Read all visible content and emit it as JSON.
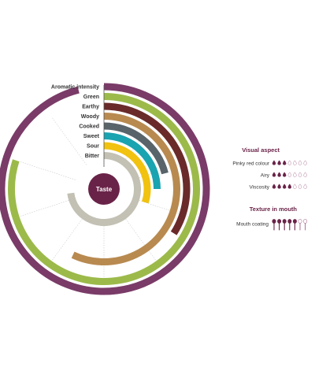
{
  "chart_data": {
    "type": "radial_bar",
    "title": "",
    "center_label": "Taste",
    "scale_max": 10,
    "series": [
      {
        "name": "Aromatic intensity",
        "value": 9.6,
        "color": "#7a3b68"
      },
      {
        "name": "Green",
        "value": 8.0,
        "color": "#9cba4a"
      },
      {
        "name": "Earthy",
        "value": 3.4,
        "color": "#6a2a2a"
      },
      {
        "name": "Woody",
        "value": 5.7,
        "color": "#b88a50"
      },
      {
        "name": "Cooked",
        "value": 2.1,
        "color": "#58636a"
      },
      {
        "name": "Sweet",
        "value": 2.5,
        "color": "#1aa3b0"
      },
      {
        "name": "Sour",
        "value": 3.0,
        "color": "#f1c20f"
      },
      {
        "name": "Bitter",
        "value": 7.3,
        "color": "#c3c0b4"
      }
    ]
  },
  "visual_aspect": {
    "title": "Visual aspect",
    "items": [
      {
        "label": "Pinky red colour",
        "level": 3,
        "max": 7
      },
      {
        "label": "Airy",
        "level": 3,
        "max": 7
      },
      {
        "label": "Viscosity",
        "level": 4,
        "max": 7
      }
    ]
  },
  "texture": {
    "title": "Texture in mouth",
    "items": [
      {
        "label": "Mouth coating",
        "level": 5,
        "max": 7
      }
    ]
  },
  "colors": {
    "accent": "#6a2348",
    "drop_filled": "#6a2348",
    "drop_empty_stroke": "#b07a9a",
    "spoke": "#bbbbbb"
  }
}
